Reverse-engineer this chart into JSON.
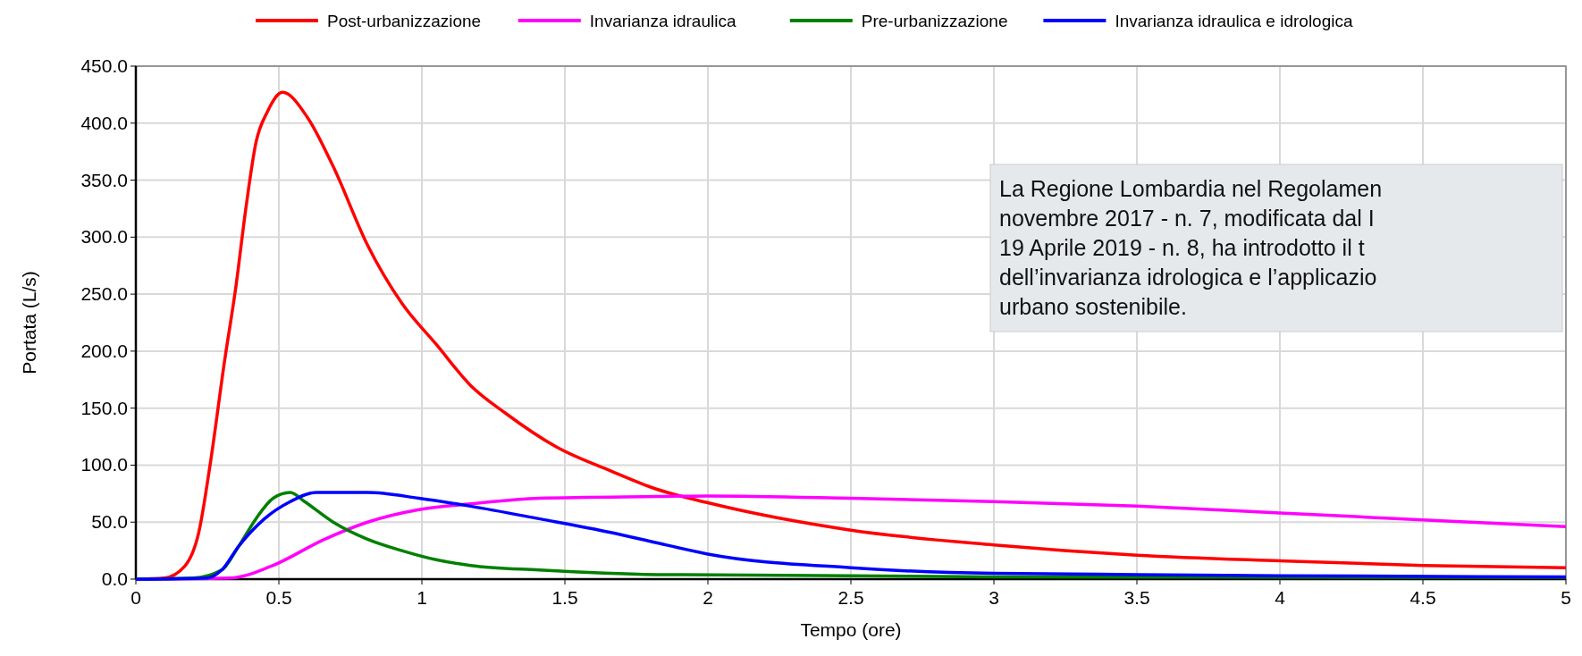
{
  "chart_data": {
    "type": "line",
    "xlabel": "Tempo (ore)",
    "ylabel": "Portata (L/s)",
    "xlim": [
      0,
      5
    ],
    "xticks": [
      0,
      0.5,
      1,
      1.5,
      2,
      2.5,
      3,
      3.5,
      4,
      4.5,
      5
    ],
    "ylim": [
      0,
      450
    ],
    "yticks": [
      {
        "value": 0,
        "label": "0.0"
      },
      {
        "value": 50,
        "label": "50.0"
      },
      {
        "value": 100,
        "label": "100.0"
      },
      {
        "value": 150,
        "label": "150.0"
      },
      {
        "value": 200,
        "label": "200.0"
      },
      {
        "value": 250,
        "label": "250.0"
      },
      {
        "value": 300,
        "label": "300.0"
      },
      {
        "value": 350,
        "label": "350.0"
      },
      {
        "value": 400,
        "label": "400.0"
      },
      {
        "value": 450,
        "label": "450.0"
      }
    ],
    "grid": true,
    "legend": "top",
    "marker": "none",
    "line_style": "solid",
    "annotations": [
      "La Regione Lombardia nel Regolamen\nnovembre 2017 - n. 7, modificata dal I\n19 Aprile 2019 - n. 8, ha introdotto il t\ndell’invarianza idrologica e l’applicazio\nurbano sostenibile."
    ],
    "series": [
      {
        "name": "Post-urbanizzazione",
        "color": "#ff0000",
        "x": [
          0,
          0.1,
          0.17,
          0.22,
          0.26,
          0.31,
          0.35,
          0.385,
          0.42,
          0.46,
          0.513,
          0.6,
          0.69,
          0.81,
          0.93,
          1.05,
          1.17,
          1.29,
          1.47,
          1.66,
          1.82,
          2,
          2.5,
          3,
          3.5,
          4,
          4.5,
          5
        ],
        "values": [
          0,
          1,
          11,
          41,
          101,
          191,
          257,
          326,
          383,
          410,
          427,
          405,
          362,
          293,
          242,
          206,
          170,
          146,
          116,
          95,
          79,
          67,
          43,
          30,
          21,
          16,
          12,
          10
        ]
      },
      {
        "name": "Invarianza idraulica",
        "color": "#ff00ff",
        "x": [
          0,
          0.33,
          0.47,
          0.66,
          0.81,
          0.99,
          1.17,
          1.41,
          1.82,
          2,
          2.5,
          3,
          3.5,
          4,
          4.5,
          5
        ],
        "values": [
          0,
          1,
          11,
          35,
          50,
          61,
          66,
          71,
          72.5,
          73,
          71,
          68,
          64,
          58,
          52,
          46
        ]
      },
      {
        "name": "Pre-urbanizzazione",
        "color": "#008000",
        "x": [
          0,
          0.2,
          0.3,
          0.36,
          0.42,
          0.48,
          0.54,
          0.59,
          0.69,
          0.81,
          0.93,
          1.05,
          1.17,
          1.41,
          1.82,
          2.5,
          3,
          5
        ],
        "values": [
          0,
          1,
          8,
          29,
          53,
          71,
          76,
          68,
          50,
          35,
          25,
          17,
          12,
          8,
          4,
          3,
          2,
          1.5
        ]
      },
      {
        "name": "Invarianza idraulica e idrologica",
        "color": "#0000ff",
        "x": [
          0,
          0.25,
          0.3,
          0.36,
          0.45,
          0.54,
          0.63,
          0.81,
          0.99,
          1.17,
          1.41,
          1.66,
          1.82,
          2,
          2.5,
          3,
          3.5,
          4,
          5
        ],
        "values": [
          0,
          1,
          8,
          29,
          53,
          68,
          76,
          76,
          71,
          64,
          53,
          41,
          32,
          22,
          10,
          5,
          4,
          3,
          2
        ]
      }
    ]
  }
}
